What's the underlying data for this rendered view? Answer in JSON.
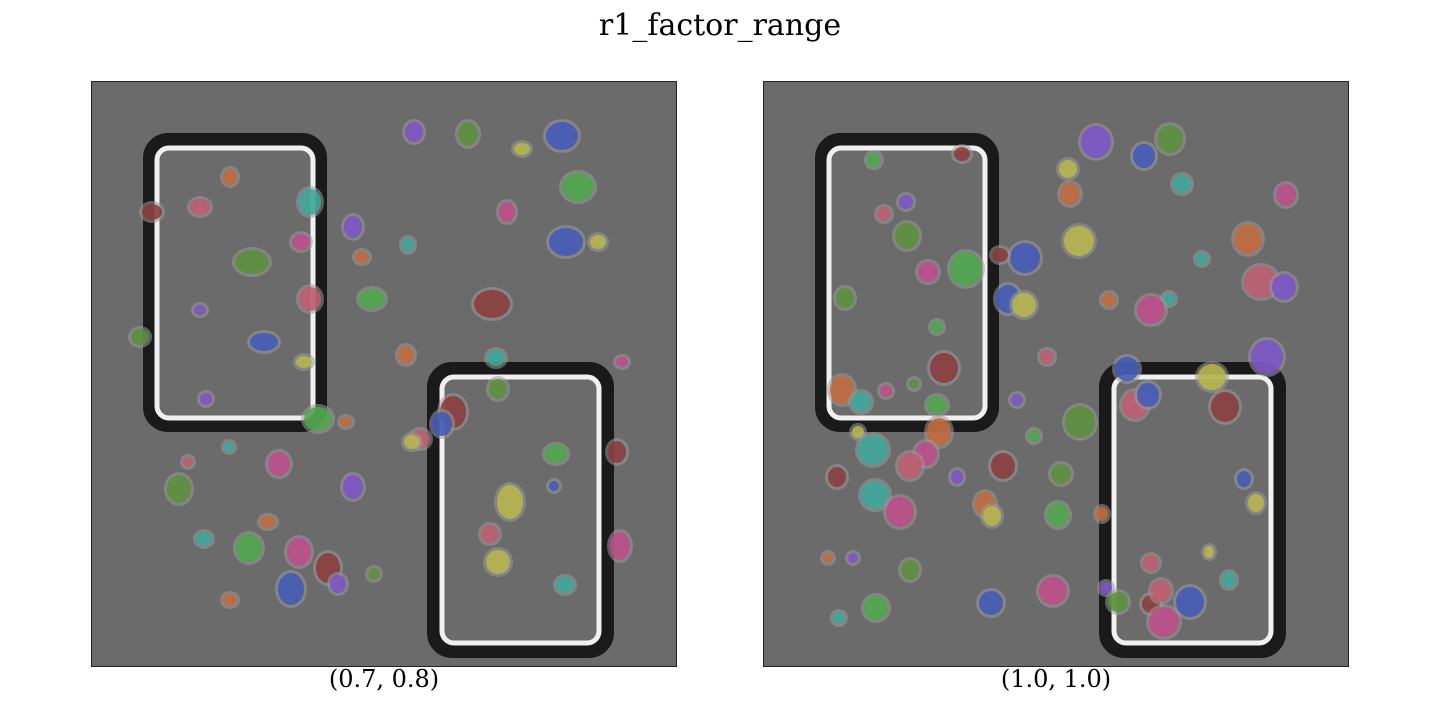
{
  "figure": {
    "title": "r1_factor_range"
  },
  "panels": [
    {
      "caption": "(0.7, 0.8)"
    },
    {
      "caption": "(1.0, 1.0)"
    }
  ],
  "colors": {
    "background": "#6b6b6b",
    "well_outer": "#1a1a1a",
    "well_inner": "#f2f2f2",
    "mask_palette": [
      "#7b52c9",
      "#5a8f3a",
      "#3f58b8",
      "#b8b84a",
      "#c46a3a",
      "#3aa89a",
      "#c04a8a",
      "#4aa84a",
      "#8a3a3a",
      "#c05a70"
    ]
  }
}
